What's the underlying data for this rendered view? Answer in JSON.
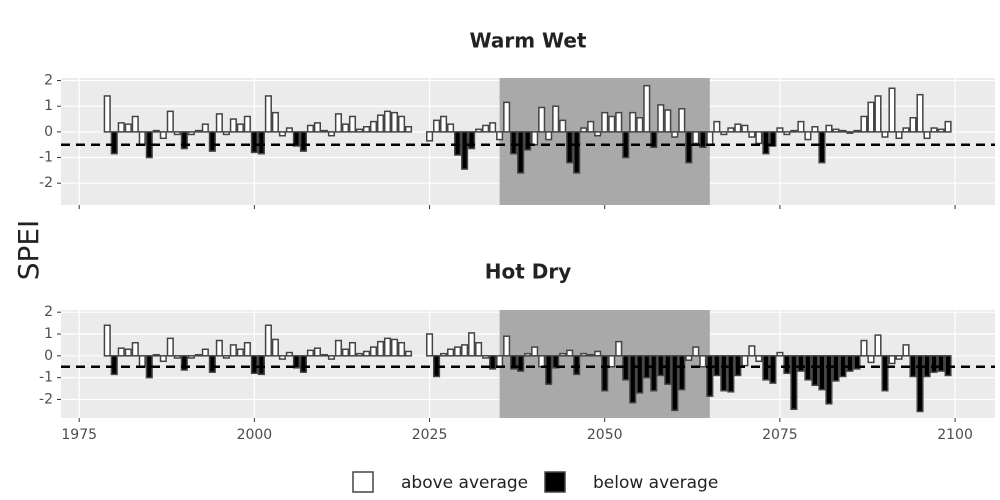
{
  "chart_data": {
    "type": "bar",
    "ylabel": "SPEI",
    "legend": [
      {
        "name": "above average",
        "color": "#ffffff"
      },
      {
        "name": "below average",
        "color": "#000000"
      }
    ],
    "threshold": -0.5,
    "highlight": [
      2035,
      2065
    ],
    "xlim": [
      1972.4,
      2105.7
    ],
    "xticks": [
      1975,
      2000,
      2025,
      2050,
      2075,
      2100
    ],
    "ylim": [
      -2.85,
      2.1
    ],
    "yticks": [
      -2,
      -1,
      0,
      1,
      2
    ],
    "grid": true,
    "x": [
      1979,
      1980,
      1981,
      1982,
      1983,
      1984,
      1985,
      1986,
      1987,
      1988,
      1989,
      1990,
      1991,
      1992,
      1993,
      1994,
      1995,
      1996,
      1997,
      1998,
      1999,
      2000,
      2001,
      2002,
      2003,
      2004,
      2005,
      2006,
      2007,
      2008,
      2009,
      2010,
      2011,
      2012,
      2013,
      2014,
      2015,
      2016,
      2017,
      2018,
      2019,
      2020,
      2021,
      2022,
      2025,
      2026,
      2027,
      2028,
      2029,
      2030,
      2031,
      2032,
      2033,
      2034,
      2035,
      2036,
      2037,
      2038,
      2039,
      2040,
      2041,
      2042,
      2043,
      2044,
      2045,
      2046,
      2047,
      2048,
      2049,
      2050,
      2051,
      2052,
      2053,
      2054,
      2055,
      2056,
      2057,
      2058,
      2059,
      2060,
      2061,
      2062,
      2063,
      2064,
      2065,
      2066,
      2067,
      2068,
      2069,
      2070,
      2071,
      2072,
      2073,
      2074,
      2075,
      2076,
      2077,
      2078,
      2079,
      2080,
      2081,
      2082,
      2083,
      2084,
      2085,
      2086,
      2087,
      2088,
      2089,
      2090,
      2091,
      2092,
      2093,
      2094,
      2095,
      2096,
      2097,
      2098,
      2099
    ],
    "panels": [
      {
        "title": "Warm Wet",
        "values": [
          1.4,
          -0.85,
          0.35,
          0.3,
          0.6,
          -0.5,
          -1.0,
          0.05,
          -0.25,
          0.8,
          -0.1,
          -0.65,
          -0.1,
          0.05,
          0.3,
          -0.75,
          0.7,
          -0.1,
          0.5,
          0.3,
          0.6,
          -0.8,
          -0.85,
          1.4,
          0.75,
          -0.15,
          0.15,
          -0.55,
          -0.75,
          0.25,
          0.35,
          0.05,
          -0.15,
          0.7,
          0.3,
          0.6,
          0.1,
          0.2,
          0.4,
          0.65,
          0.8,
          0.75,
          0.6,
          0.2,
          -0.35,
          0.45,
          0.6,
          0.3,
          -0.9,
          -1.45,
          -0.65,
          0.1,
          0.25,
          0.35,
          -0.3,
          1.15,
          -0.85,
          -1.6,
          -0.7,
          -0.5,
          0.95,
          -0.3,
          1.0,
          0.45,
          -1.2,
          -1.6,
          0.15,
          0.4,
          -0.15,
          0.75,
          0.6,
          0.75,
          -1.0,
          0.75,
          0.55,
          1.8,
          -0.6,
          1.05,
          0.85,
          -0.2,
          0.9,
          -1.2,
          -0.45,
          -0.6,
          -0.5,
          0.4,
          -0.1,
          0.15,
          0.3,
          0.25,
          -0.2,
          -0.45,
          -0.85,
          -0.55,
          0.15,
          -0.1,
          0.05,
          0.4,
          -0.3,
          0.2,
          -1.2,
          0.25,
          0.1,
          0.05,
          -0.05,
          0.05,
          0.6,
          1.15,
          1.4,
          -0.2,
          1.7,
          -0.25,
          0.15,
          0.55,
          1.45,
          -0.25,
          0.15,
          0.1,
          0.4
        ]
      },
      {
        "title": "Hot Dry",
        "values": [
          1.4,
          -0.85,
          0.35,
          0.3,
          0.6,
          -0.5,
          -1.0,
          0.05,
          -0.25,
          0.8,
          -0.1,
          -0.65,
          -0.1,
          0.05,
          0.3,
          -0.75,
          0.7,
          -0.1,
          0.5,
          0.3,
          0.6,
          -0.8,
          -0.85,
          1.4,
          0.75,
          -0.15,
          0.15,
          -0.55,
          -0.75,
          0.25,
          0.35,
          0.05,
          -0.15,
          0.7,
          0.3,
          0.6,
          0.1,
          0.2,
          0.4,
          0.65,
          0.8,
          0.75,
          0.6,
          0.2,
          1.0,
          -0.95,
          0.1,
          0.3,
          0.4,
          0.5,
          1.05,
          0.6,
          -0.1,
          -0.6,
          -0.5,
          0.9,
          -0.6,
          -0.7,
          0.1,
          0.4,
          -0.5,
          -1.3,
          -0.55,
          0.1,
          0.25,
          -0.85,
          0.1,
          0.05,
          0.2,
          -1.6,
          -0.5,
          0.65,
          -1.1,
          -2.15,
          -1.7,
          -1.0,
          -1.6,
          -0.9,
          -1.3,
          -2.5,
          -1.55,
          -0.2,
          0.4,
          -0.5,
          -1.85,
          -0.9,
          -1.6,
          -1.65,
          -0.9,
          -0.45,
          0.45,
          -0.25,
          -1.1,
          -1.25,
          0.15,
          -0.8,
          -2.45,
          -0.7,
          -1.1,
          -1.35,
          -1.55,
          -2.2,
          -1.15,
          -0.95,
          -0.7,
          -0.6,
          0.7,
          -0.3,
          0.95,
          -1.6,
          -0.35,
          -0.15,
          0.5,
          -0.95,
          -2.55,
          -0.95,
          -0.75,
          -0.7,
          -0.9
        ]
      }
    ]
  }
}
